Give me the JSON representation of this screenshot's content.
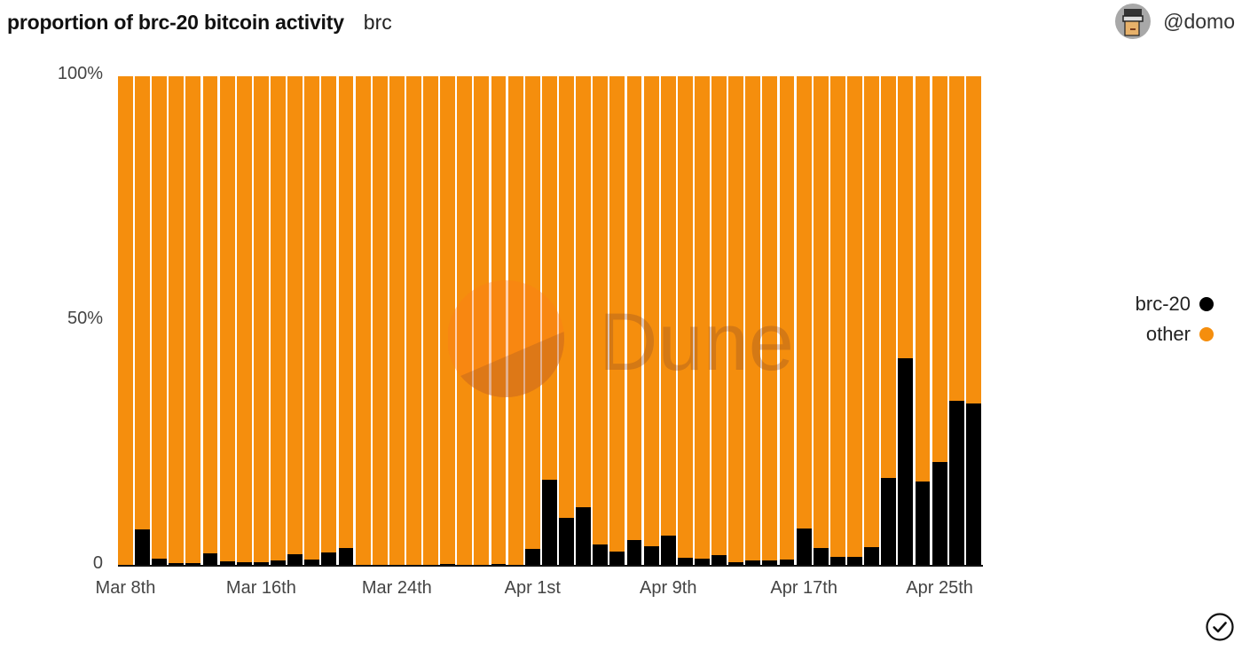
{
  "header": {
    "title": "proportion of brc-20 bitcoin activity",
    "subtitle": "brc",
    "author": "@domo"
  },
  "watermark": "Dune",
  "colors": {
    "brc20": "#000000",
    "other": "#F58E0D",
    "gap": "#FFE9C7"
  },
  "legend": [
    {
      "label": "brc-20",
      "color": "#000000"
    },
    {
      "label": "other",
      "color": "#F58E0D"
    }
  ],
  "y_ticks": [
    "100%",
    "50%",
    "0"
  ],
  "x_ticks": [
    {
      "label": "Mar 8th",
      "index": 0
    },
    {
      "label": "Mar 16th",
      "index": 8
    },
    {
      "label": "Mar 24th",
      "index": 16
    },
    {
      "label": "Apr 1st",
      "index": 24
    },
    {
      "label": "Apr 9th",
      "index": 32
    },
    {
      "label": "Apr 17th",
      "index": 40
    },
    {
      "label": "Apr 25th",
      "index": 48
    }
  ],
  "chart_data": {
    "type": "bar",
    "stacked": true,
    "normalized": true,
    "title": "proportion of brc-20 bitcoin activity",
    "subtitle": "brc",
    "xlabel": "",
    "ylabel": "",
    "ylim": [
      0,
      100
    ],
    "y_tick_labels": [
      "0",
      "50%",
      "100%"
    ],
    "legend_position": "right",
    "grid": false,
    "categories": [
      "Mar 8",
      "Mar 9",
      "Mar 10",
      "Mar 11",
      "Mar 12",
      "Mar 13",
      "Mar 14",
      "Mar 15",
      "Mar 16",
      "Mar 17",
      "Mar 18",
      "Mar 19",
      "Mar 20",
      "Mar 21",
      "Mar 22",
      "Mar 23",
      "Mar 24",
      "Mar 25",
      "Mar 26",
      "Mar 27",
      "Mar 28",
      "Mar 29",
      "Mar 30",
      "Mar 31",
      "Apr 1",
      "Apr 2",
      "Apr 3",
      "Apr 4",
      "Apr 5",
      "Apr 6",
      "Apr 7",
      "Apr 8",
      "Apr 9",
      "Apr 10",
      "Apr 11",
      "Apr 12",
      "Apr 13",
      "Apr 14",
      "Apr 15",
      "Apr 16",
      "Apr 17",
      "Apr 18",
      "Apr 19",
      "Apr 20",
      "Apr 21",
      "Apr 22",
      "Apr 23",
      "Apr 24",
      "Apr 25",
      "Apr 26",
      "Apr 27"
    ],
    "series": [
      {
        "name": "brc-20",
        "color": "#000000",
        "values": [
          0.0,
          7.4,
          1.4,
          0.5,
          0.5,
          2.5,
          0.9,
          0.7,
          0.7,
          1.1,
          2.4,
          1.3,
          2.7,
          3.6,
          0.1,
          0.1,
          0.1,
          0.1,
          0.1,
          0.3,
          0.2,
          0.2,
          0.3,
          0.2,
          3.4,
          17.6,
          9.8,
          12.0,
          4.3,
          2.9,
          5.3,
          4.0,
          6.2,
          1.6,
          1.4,
          2.2,
          0.7,
          1.0,
          1.0,
          1.3,
          7.6,
          3.6,
          1.8,
          1.8,
          3.8,
          18.0,
          42.4,
          17.2,
          21.2,
          33.7,
          33.2
        ]
      },
      {
        "name": "other",
        "color": "#F58E0D",
        "values": [
          100.0,
          92.6,
          98.6,
          99.5,
          99.5,
          97.5,
          99.1,
          99.3,
          99.3,
          98.9,
          97.6,
          98.7,
          97.3,
          96.4,
          99.9,
          99.9,
          99.9,
          99.9,
          99.9,
          99.7,
          99.8,
          99.8,
          99.7,
          99.8,
          96.6,
          82.4,
          90.2,
          88.0,
          95.7,
          97.1,
          94.7,
          96.0,
          93.8,
          98.4,
          98.6,
          97.8,
          99.3,
          99.0,
          99.0,
          98.7,
          92.4,
          96.4,
          98.2,
          98.2,
          96.2,
          82.0,
          57.6,
          82.8,
          78.8,
          66.3,
          66.8
        ]
      }
    ]
  }
}
